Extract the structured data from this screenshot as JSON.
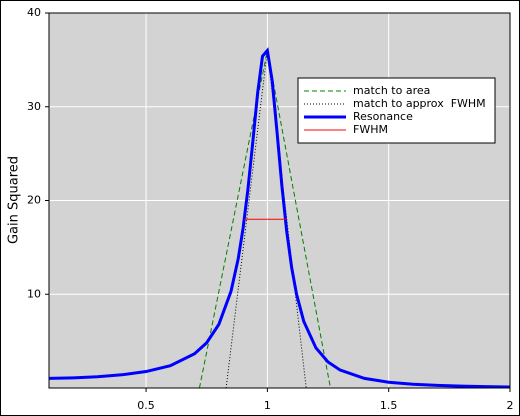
{
  "chart_data": {
    "type": "line",
    "ylabel": "Gain Squared",
    "xlim": [
      0.1,
      2
    ],
    "ylim": [
      0,
      40
    ],
    "xticks": [
      0.5,
      1,
      1.5,
      2
    ],
    "yticks": [
      10,
      20,
      30,
      40
    ],
    "grid": true,
    "legend": "upper right",
    "series": [
      {
        "name": "match to area",
        "color": "#008000",
        "dash": "5,3",
        "width": 1,
        "x": [
          0.72,
          1,
          1.26
        ],
        "values": [
          0,
          36,
          0
        ]
      },
      {
        "name": "match to approx  FWHM",
        "color": "#000000",
        "dash": "1,2",
        "width": 1,
        "x": [
          0.83,
          1,
          1.16
        ],
        "values": [
          0,
          36,
          0
        ]
      },
      {
        "name": "Resonance",
        "color": "#0000ff",
        "dash": "none",
        "width": 3,
        "x": [
          0.1,
          0.2,
          0.3,
          0.4,
          0.5,
          0.6,
          0.7,
          0.75,
          0.8,
          0.85,
          0.88,
          0.9,
          0.92,
          0.94,
          0.96,
          0.98,
          1.0,
          1.02,
          1.04,
          1.06,
          1.08,
          1.1,
          1.12,
          1.15,
          1.2,
          1.25,
          1.3,
          1.4,
          1.5,
          1.6,
          1.7,
          1.8,
          1.9,
          2.0
        ],
        "values": [
          1.02,
          1.084,
          1.204,
          1.408,
          1.756,
          2.383,
          3.654,
          4.831,
          6.785,
          10.3,
          13.81,
          17.06,
          21.23,
          26.25,
          31.5,
          35.4,
          36.0,
          32.75,
          27.25,
          21.51,
          16.64,
          12.87,
          10.04,
          7.107,
          4.281,
          2.779,
          1.912,
          1.025,
          0.615,
          0.399,
          0.274,
          0.196,
          0.145,
          0.11
        ]
      },
      {
        "name": "FWHM",
        "color": "#ff0000",
        "dash": "none",
        "width": 1,
        "x": [
          0.905,
          1.078
        ],
        "values": [
          18,
          18
        ]
      }
    ]
  }
}
